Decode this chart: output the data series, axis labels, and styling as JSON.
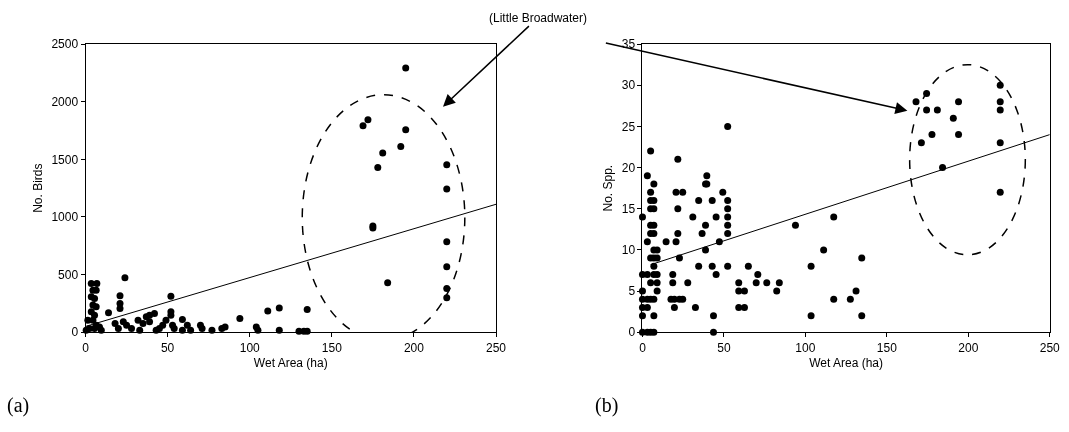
{
  "chart_data": [
    {
      "type": "scatter",
      "xlabel": "Wet Area (ha)",
      "ylabel": "No. Birds",
      "xlim": [
        0,
        250
      ],
      "xticks": [
        0,
        50,
        100,
        150,
        200,
        250
      ],
      "ylim": [
        0,
        2500
      ],
      "yticks": [
        0,
        500,
        1000,
        1500,
        2000,
        2500
      ],
      "annotations": [
        "(a)",
        "(Little Broadwater)"
      ],
      "series": [
        {
          "marker": "circle",
          "color": "#000000",
          "x": [
            3.5,
            6.9,
            4.5,
            6.5,
            3.5,
            5.5,
            4.5,
            6.5,
            3.5,
            5.5,
            4.5,
            6.5,
            2.4,
            0.4,
            8.5,
            9.6,
            1.4,
            5.5,
            14,
            21,
            21,
            21,
            24,
            18,
            20,
            23,
            25,
            28,
            32,
            33,
            35,
            37,
            39,
            39,
            42,
            43,
            45,
            47,
            49,
            52,
            52,
            52,
            53,
            54,
            59,
            59,
            62,
            64,
            70,
            71,
            77,
            83,
            85,
            94,
            104,
            105,
            111,
            118,
            118,
            130,
            133,
            135,
            135,
            195,
            169,
            172,
            195,
            192,
            181,
            178,
            220,
            220,
            175,
            175,
            220,
            220,
            220,
            220,
            184
          ],
          "values": [
            423,
            423,
            365,
            365,
            307,
            293,
            235,
            220,
            177,
            148,
            104,
            61,
            32,
            17,
            46,
            17,
            104,
            32,
            168,
            316,
            249,
            206,
            472,
            75,
            32,
            90,
            61,
            32,
            104,
            17,
            75,
            133,
            148,
            90,
            162,
            17,
            32,
            61,
            104,
            313,
            177,
            148,
            61,
            32,
            110,
            17,
            61,
            17,
            61,
            32,
            17,
            32,
            46,
            119,
            46,
            17,
            185,
            209,
            17,
            9,
            9,
            9,
            197,
            2293,
            1791,
            1843,
            1757,
            1611,
            1554,
            1429,
            1452,
            1243,
            922,
            904,
            785,
            568,
            380,
            298,
            429
          ]
        },
        {
          "type": "line",
          "marker": "none",
          "color": "#000000",
          "x": [
            0,
            250
          ],
          "values": [
            50,
            1110
          ]
        }
      ]
    },
    {
      "type": "scatter",
      "xlabel": "Wet Area (ha)",
      "ylabel": "No. Spp.",
      "xlim": [
        0,
        250
      ],
      "xticks": [
        0,
        50,
        100,
        150,
        200,
        250
      ],
      "ylim": [
        0,
        35
      ],
      "yticks": [
        0,
        5,
        10,
        15,
        20,
        25,
        30,
        35
      ],
      "annotations": [
        "(b)"
      ],
      "series": [
        {
          "marker": "circle",
          "color": "#000000",
          "x": [
            0,
            0,
            0,
            0,
            0,
            0,
            0,
            3,
            3,
            3,
            3,
            3,
            3,
            5,
            5,
            5,
            5,
            5,
            5,
            5,
            5,
            5,
            5,
            7,
            7,
            7,
            7,
            7,
            7,
            7,
            7,
            7,
            7,
            7,
            7,
            9,
            9,
            9,
            9,
            9,
            14.5,
            17.5,
            18.6,
            18.6,
            19.6,
            19.6,
            20.6,
            20.6,
            21.7,
            21.7,
            21.7,
            22.7,
            22.7,
            24.7,
            24.7,
            27.8,
            30.9,
            32.5,
            34.5,
            34.5,
            36.6,
            38.7,
            38.7,
            38.7,
            39.5,
            39.5,
            42.8,
            42.8,
            43.6,
            43.6,
            45.2,
            45.2,
            47.2,
            49.3,
            52.3,
            52.3,
            52.3,
            52.3,
            52.3,
            52.3,
            52.3,
            59.1,
            59.1,
            59.1,
            62.6,
            62.6,
            65,
            69.8,
            70.8,
            76.3,
            82.4,
            84,
            93.9,
            103.5,
            103.5,
            111.2,
            117.4,
            117.4,
            127.6,
            131.1,
            134.6,
            134.6,
            167.9,
            174.4,
            174.4,
            181,
            194,
            190.8,
            171.2,
            177.7,
            194,
            184.2,
            219.6,
            219.6,
            219.6,
            219.6,
            219.6
          ],
          "values": [
            0,
            2,
            3,
            4,
            5,
            7,
            14,
            0,
            3,
            4,
            7,
            11,
            19,
            0,
            4,
            6,
            9,
            12,
            13,
            15,
            16,
            17,
            22,
            0,
            2,
            4,
            7,
            8,
            9,
            10,
            12,
            13,
            15,
            16,
            18,
            5,
            6,
            7,
            9,
            10,
            11,
            4,
            6,
            7,
            3,
            4,
            11,
            17,
            21,
            15,
            12,
            4,
            9,
            17,
            4,
            6,
            14,
            3,
            16,
            8,
            12,
            18,
            13,
            10,
            18,
            19,
            16,
            8,
            2,
            0,
            14,
            7,
            11,
            17,
            25,
            16,
            15,
            14,
            13,
            12,
            8,
            6,
            5,
            3,
            5,
            3,
            8,
            6,
            7,
            6,
            5,
            6,
            13,
            8,
            2,
            10,
            14,
            4,
            4,
            5,
            9,
            2,
            28,
            29,
            27,
            27,
            28,
            26,
            23,
            24,
            24,
            20,
            30,
            28,
            27,
            23,
            17
          ]
        },
        {
          "type": "line",
          "marker": "none",
          "color": "#000000",
          "x": [
            5,
            250
          ],
          "values": [
            8.2,
            24.0
          ]
        }
      ]
    }
  ]
}
